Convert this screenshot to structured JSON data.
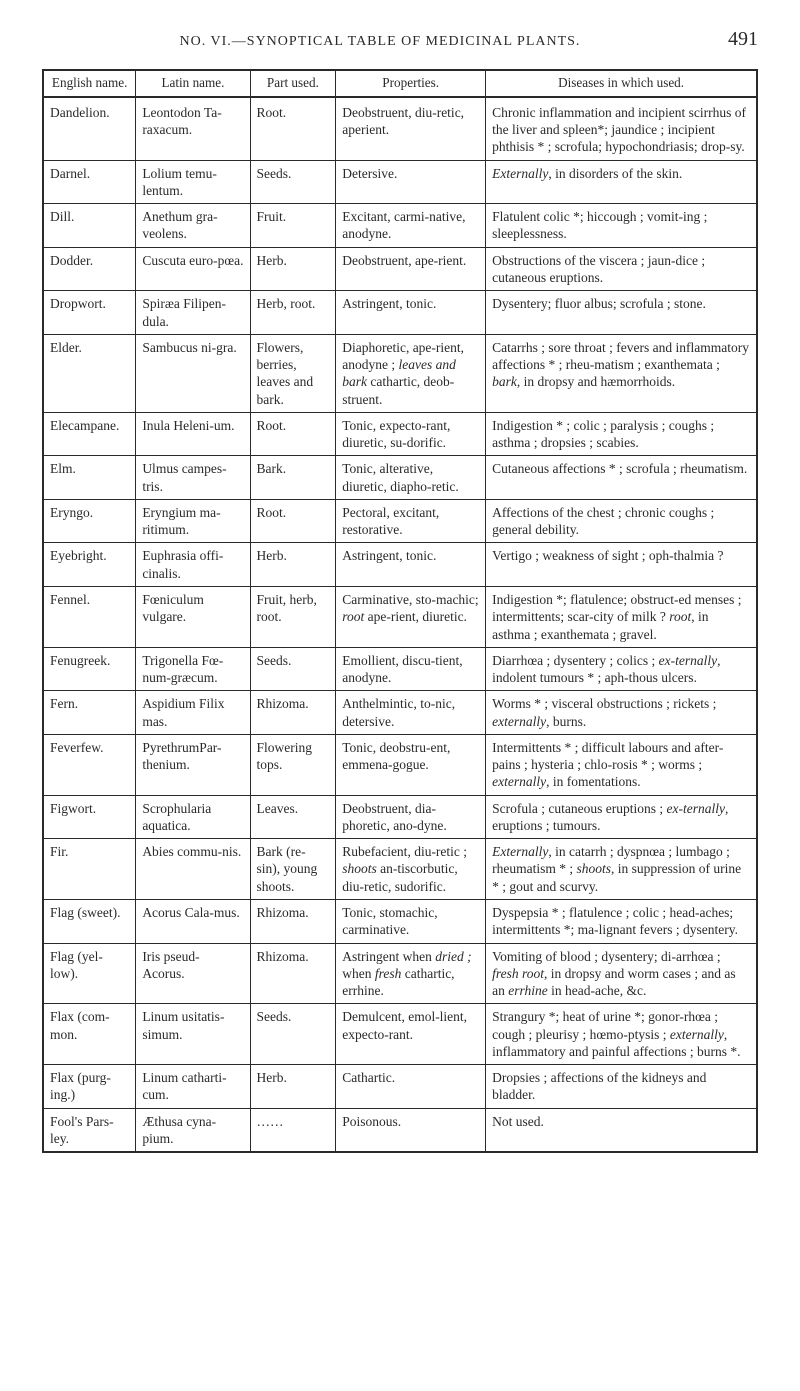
{
  "header": {
    "title": "NO. VI.—SYNOPTICAL TABLE OF MEDICINAL PLANTS.",
    "page_number": "491"
  },
  "table": {
    "columns": [
      "English name.",
      "Latin name.",
      "Part used.",
      "Properties.",
      "Diseases in which used."
    ],
    "rows": [
      {
        "english": "Dandelion.",
        "latin": "Leontodon Ta-raxacum.",
        "part": "Root.",
        "properties": "Deobstruent, diu-retic, aperient.",
        "diseases": "Chronic inflammation and incipient scirrhus of the liver and spleen*; jaundice ; incipient phthisis * ; scrofula; hypochondriasis; drop-sy."
      },
      {
        "english": "Darnel.",
        "latin": "Lolium temu-lentum.",
        "part": "Seeds.",
        "properties": "Detersive.",
        "diseases_html": "<em>Externally</em>, in disorders of the skin."
      },
      {
        "english": "Dill.",
        "latin": "Anethum gra-veolens.",
        "part": "Fruit.",
        "properties": "Excitant, carmi-native, anodyne.",
        "diseases": "Flatulent colic *; hiccough ; vomit-ing ; sleeplessness."
      },
      {
        "english": "Dodder.",
        "latin": "Cuscuta euro-pœa.",
        "part": "Herb.",
        "properties": "Deobstruent, ape-rient.",
        "diseases": "Obstructions of the viscera ; jaun-dice ; cutaneous eruptions."
      },
      {
        "english": "Dropwort.",
        "latin": "Spiræa Filipen-dula.",
        "part": "Herb, root.",
        "properties": "Astringent, tonic.",
        "diseases": "Dysentery; fluor albus; scrofula ; stone."
      },
      {
        "english": "Elder.",
        "latin": "Sambucus ni-gra.",
        "part": "Flowers, berries, leaves and bark.",
        "properties_html": "Diaphoretic, ape-rient, anodyne ; <em>leaves and bark</em> cathartic, deob-struent.",
        "diseases_html": "Catarrhs ; sore throat ; fevers and inflammatory affections * ; rheu-matism ; exanthemata ; <em>bark</em>, in dropsy and hæmorrhoids."
      },
      {
        "english": "Elecampane.",
        "latin": "Inula Heleni-um.",
        "part": "Root.",
        "properties": "Tonic, expecto-rant, diuretic, su-dorific.",
        "diseases": "Indigestion * ; colic ; paralysis ; coughs ; asthma ; dropsies ; scabies."
      },
      {
        "english": "Elm.",
        "latin": "Ulmus campes-tris.",
        "part": "Bark.",
        "properties": "Tonic, alterative, diuretic, diapho-retic.",
        "diseases": "Cutaneous affections * ; scrofula ; rheumatism."
      },
      {
        "english": "Eryngo.",
        "latin": "Eryngium ma-ritimum.",
        "part": "Root.",
        "properties": "Pectoral, excitant, restorative.",
        "diseases": "Affections of the chest ; chronic coughs ; general debility."
      },
      {
        "english": "Eyebright.",
        "latin": "Euphrasia offi-cinalis.",
        "part": "Herb.",
        "properties": "Astringent, tonic.",
        "diseases": "Vertigo ; weakness of sight ; oph-thalmia ?"
      },
      {
        "english": "Fennel.",
        "latin": "Fœniculum vulgare.",
        "part": "Fruit, herb, root.",
        "properties_html": "Carminative, sto-machic; <em>root</em> ape-rient, diuretic.",
        "diseases_html": "Indigestion *; flatulence; obstruct-ed menses ; intermittents; scar-city of milk ? <em>root</em>, in asthma ; exanthemata ; gravel."
      },
      {
        "english": "Fenugreek.",
        "latin": "Trigonella Fœ-num-græcum.",
        "part": "Seeds.",
        "properties": "Emollient, discu-tient, anodyne.",
        "diseases_html": "Diarrhœa ; dysentery ; colics ; <em>ex-ternally</em>, indolent tumours * ; aph-thous ulcers."
      },
      {
        "english": "Fern.",
        "latin": "Aspidium Filix mas.",
        "part": "Rhizoma.",
        "properties": "Anthelmintic, to-nic, detersive.",
        "diseases_html": "Worms * ; visceral obstructions ; rickets ; <em>externally</em>, burns."
      },
      {
        "english": "Feverfew.",
        "latin": "PyrethrumPar-thenium.",
        "part": "Flowering tops.",
        "properties": "Tonic, deobstru-ent, emmena-gogue.",
        "diseases_html": "Intermittents * ; difficult labours and after-pains ; hysteria ; chlo-rosis * ; worms ; <em>externally</em>, in fomentations."
      },
      {
        "english": "Figwort.",
        "latin": "Scrophularia aquatica.",
        "part": "Leaves.",
        "properties": "Deobstruent, dia-phoretic, ano-dyne.",
        "diseases_html": "Scrofula ; cutaneous eruptions ; <em>ex-ternally</em>, eruptions ; tumours."
      },
      {
        "english": "Fir.",
        "latin": "Abies commu-nis.",
        "part": "Bark (re-sin), young shoots.",
        "properties_html": "Rubefacient, diu-retic ; <em>shoots</em> an-tiscorbutic, diu-retic, sudorific.",
        "diseases_html": "<em>Externally</em>, in catarrh ; dyspnœa ; lumbago ; rheumatism * ; <em>shoots</em>, in suppression of urine * ; gout and scurvy."
      },
      {
        "english": "Flag (sweet).",
        "latin": "Acorus Cala-mus.",
        "part": "Rhizoma.",
        "properties": "Tonic, stomachic, carminative.",
        "diseases": "Dyspepsia * ; flatulence ; colic ; head-aches; intermittents *; ma-lignant fevers ; dysentery."
      },
      {
        "english": "Flag (yel- low).",
        "latin": "Iris pseud- Acorus.",
        "part": "Rhizoma.",
        "properties_html": "Astringent when <em>dried ;</em> when <em>fresh</em> cathartic, errhine.",
        "diseases_html": "Vomiting of blood ; dysentery; di-arrhœa ; <em>fresh root</em>, in dropsy and worm cases ; and as an <em>errhine</em> in head-ache, &c."
      },
      {
        "english": "Flax (com- mon.",
        "latin": "Linum usitatis-simum.",
        "part": "Seeds.",
        "properties": "Demulcent, emol-lient, expecto-rant.",
        "diseases_html": "Strangury *; heat of urine *; gonor-rhœa ; cough ; pleurisy ; hœmo-ptysis ; <em>externally</em>, inflammatory and painful affections ; burns *."
      },
      {
        "english": "Flax (purg- ing.)",
        "latin": "Linum catharti-cum.",
        "part": "Herb.",
        "properties": "Cathartic.",
        "diseases": "Dropsies ; affections of the kidneys and bladder."
      },
      {
        "english": "Fool's Pars- ley.",
        "latin": "Æthusa cyna-pium.",
        "part": "……",
        "properties": "Poisonous.",
        "diseases": "Not used."
      }
    ]
  }
}
